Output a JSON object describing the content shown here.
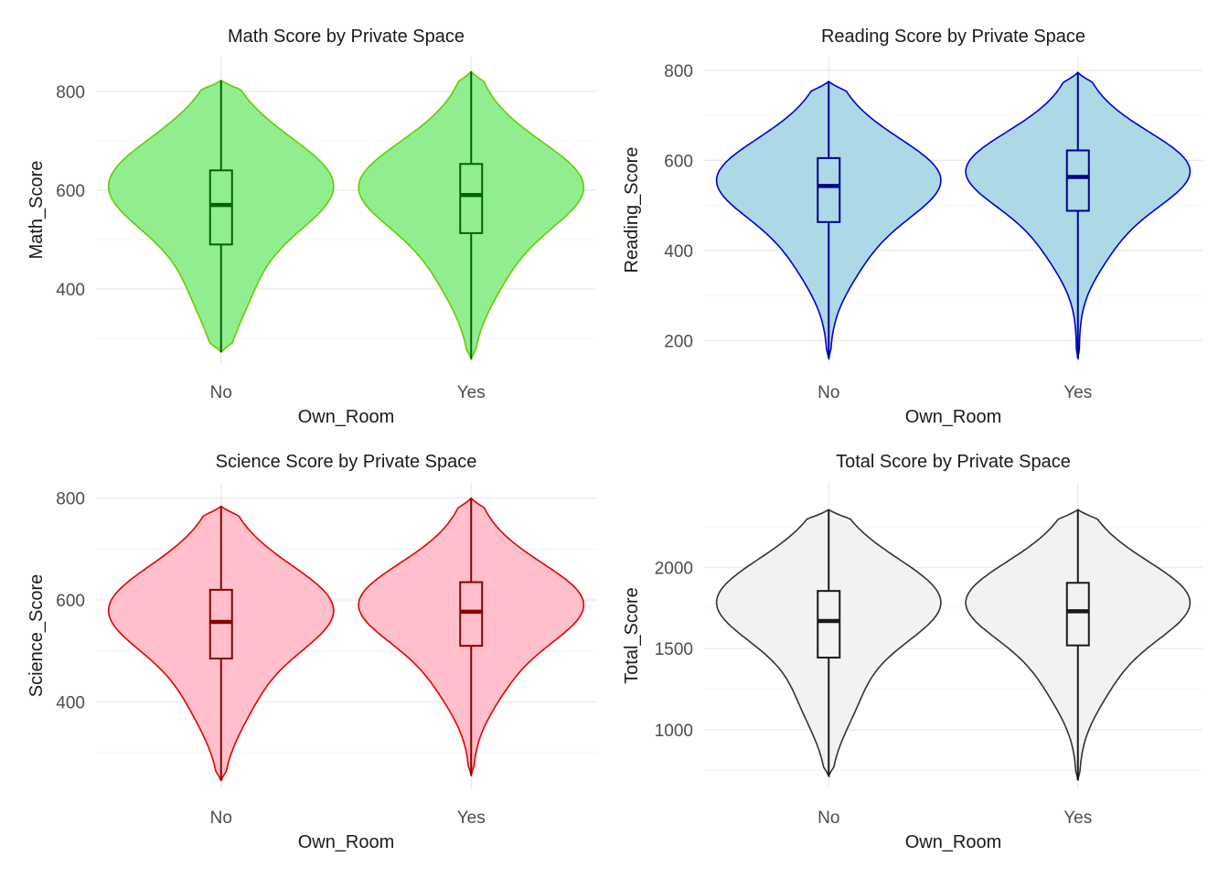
{
  "chart_data": [
    {
      "type": "violin",
      "title": "Math Score by Private Space",
      "xlabel": "Own_Room",
      "ylabel": "Math_Score",
      "categories": [
        "No",
        "Yes"
      ],
      "ylim": [
        250,
        870
      ],
      "yticks": [
        400,
        600,
        800
      ],
      "colors": {
        "fill": "#90EE90",
        "outline": "#66CC00",
        "box": "#006400"
      },
      "groups": [
        {
          "category": "No",
          "min": 272,
          "q1": 490,
          "median": 570,
          "q3": 640,
          "max": 822,
          "peak": 605
        },
        {
          "category": "Yes",
          "min": 258,
          "q1": 513,
          "median": 590,
          "q3": 653,
          "max": 840,
          "peak": 605
        }
      ]
    },
    {
      "type": "violin",
      "title": "Reading Score by Private Space",
      "xlabel": "Own_Room",
      "ylabel": "Reading_Score",
      "categories": [
        "No",
        "Yes"
      ],
      "ylim": [
        150,
        830
      ],
      "yticks": [
        200,
        400,
        600,
        800
      ],
      "colors": {
        "fill": "#ADD8E6",
        "outline": "#0000CD",
        "box": "#00008B"
      },
      "groups": [
        {
          "category": "No",
          "min": 160,
          "q1": 463,
          "median": 543,
          "q3": 605,
          "max": 775,
          "peak": 555
        },
        {
          "category": "Yes",
          "min": 160,
          "q1": 488,
          "median": 563,
          "q3": 622,
          "max": 795,
          "peak": 575
        }
      ]
    },
    {
      "type": "violin",
      "title": "Science Score by Private Space",
      "xlabel": "Own_Room",
      "ylabel": "Science_Score",
      "categories": [
        "No",
        "Yes"
      ],
      "ylim": [
        230,
        830
      ],
      "yticks": [
        400,
        600,
        800
      ],
      "colors": {
        "fill": "#FFC0CB",
        "outline": "#E60000",
        "box": "#8B0000"
      },
      "groups": [
        {
          "category": "No",
          "min": 245,
          "q1": 485,
          "median": 557,
          "q3": 620,
          "max": 784,
          "peak": 578
        },
        {
          "category": "Yes",
          "min": 255,
          "q1": 510,
          "median": 577,
          "q3": 635,
          "max": 800,
          "peak": 590
        }
      ]
    },
    {
      "type": "violin",
      "title": "Total Score by Private Space",
      "xlabel": "Own_Room",
      "ylabel": "Total_Score",
      "categories": [
        "No",
        "Yes"
      ],
      "ylim": [
        640,
        2520
      ],
      "yticks": [
        1000,
        1500,
        2000
      ],
      "colors": {
        "fill": "#F2F2F2",
        "outline": "#333333",
        "box": "#1a1a1a"
      },
      "groups": [
        {
          "category": "No",
          "min": 715,
          "q1": 1445,
          "median": 1670,
          "q3": 1855,
          "max": 2355,
          "peak": 1775
        },
        {
          "category": "Yes",
          "min": 690,
          "q1": 1520,
          "median": 1730,
          "q3": 1905,
          "max": 2355,
          "peak": 1780
        }
      ]
    }
  ]
}
